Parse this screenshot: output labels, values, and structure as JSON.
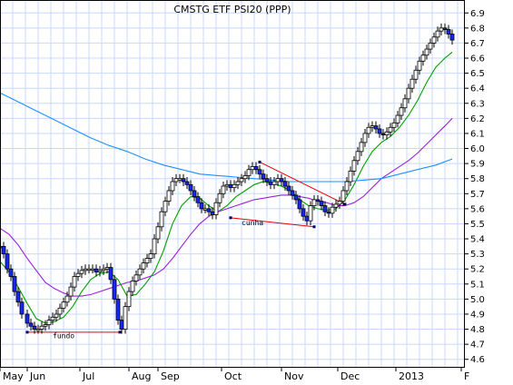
{
  "chart_data": {
    "type": "candlestick",
    "title": "CMSTG ETF PSI20 (PPP)",
    "xlabel": "",
    "ylabel": "",
    "ylim": [
      4.55,
      6.98
    ],
    "yticks": [
      4.6,
      4.7,
      4.8,
      4.9,
      5.0,
      5.1,
      5.2,
      5.3,
      5.4,
      5.5,
      5.6,
      5.7,
      5.8,
      5.9,
      6.0,
      6.1,
      6.2,
      6.3,
      6.4,
      6.5,
      6.6,
      6.7,
      6.8,
      6.9
    ],
    "xticks": [
      {
        "label": "May",
        "day": 0
      },
      {
        "label": "Jun",
        "day": 30
      },
      {
        "label": "Jul",
        "day": 88
      },
      {
        "label": "Aug",
        "day": 142
      },
      {
        "label": "Sep",
        "day": 174
      },
      {
        "label": "Oct",
        "day": 244
      },
      {
        "label": "Nov",
        "day": 310
      },
      {
        "label": "Dec",
        "day": 372
      },
      {
        "label": "2013",
        "day": 436
      },
      {
        "label": "F",
        "day": 508
      }
    ],
    "x_range_days": [
      0,
      512
    ],
    "grid": true,
    "legend": "none",
    "price": {
      "x": [
        0,
        4,
        8,
        12,
        16,
        20,
        24,
        30,
        34,
        38,
        42,
        46,
        50,
        54,
        58,
        62,
        66,
        70,
        74,
        78,
        82,
        86,
        90,
        94,
        98,
        102,
        106,
        110,
        114,
        118,
        122,
        126,
        130,
        134,
        138,
        142,
        146,
        150,
        154,
        158,
        162,
        166,
        170,
        174,
        178,
        182,
        186,
        190,
        194,
        198,
        202,
        206,
        210,
        214,
        218,
        222,
        226,
        230,
        234,
        238,
        242,
        246,
        250,
        254,
        258,
        262,
        266,
        270,
        274,
        278,
        282,
        286,
        290,
        294,
        298,
        302,
        306,
        310,
        314,
        318,
        322,
        326,
        330,
        334,
        338,
        342,
        346,
        350,
        354,
        358,
        362,
        366,
        370,
        374,
        378,
        382,
        386,
        390,
        394,
        398,
        402,
        406,
        410,
        414,
        418,
        422,
        426,
        430,
        434,
        438,
        442,
        446,
        450,
        454,
        458,
        462,
        466,
        470,
        474,
        478,
        482,
        486,
        490,
        494,
        498
      ],
      "close": [
        5.35,
        5.3,
        5.2,
        5.15,
        5.05,
        4.98,
        4.9,
        4.84,
        4.82,
        4.8,
        4.8,
        4.82,
        4.83,
        4.86,
        4.88,
        4.9,
        4.94,
        4.98,
        5.02,
        5.08,
        5.15,
        5.17,
        5.19,
        5.2,
        5.2,
        5.2,
        5.18,
        5.19,
        5.2,
        5.21,
        5.13,
        5.0,
        4.86,
        4.8,
        4.95,
        5.05,
        5.12,
        5.16,
        5.2,
        5.24,
        5.27,
        5.3,
        5.4,
        5.48,
        5.58,
        5.65,
        5.72,
        5.78,
        5.8,
        5.8,
        5.78,
        5.76,
        5.72,
        5.68,
        5.64,
        5.6,
        5.6,
        5.58,
        5.56,
        5.64,
        5.7,
        5.75,
        5.76,
        5.74,
        5.76,
        5.78,
        5.8,
        5.82,
        5.86,
        5.88,
        5.86,
        5.83,
        5.8,
        5.78,
        5.76,
        5.78,
        5.8,
        5.78,
        5.75,
        5.72,
        5.69,
        5.66,
        5.6,
        5.55,
        5.52,
        5.62,
        5.66,
        5.65,
        5.62,
        5.58,
        5.57,
        5.61,
        5.63,
        5.65,
        5.72,
        5.78,
        5.85,
        5.92,
        5.98,
        6.04,
        6.1,
        6.14,
        6.15,
        6.13,
        6.1,
        6.09,
        6.11,
        6.14,
        6.17,
        6.22,
        6.27,
        6.33,
        6.4,
        6.46,
        6.52,
        6.58,
        6.62,
        6.66,
        6.7,
        6.74,
        6.78,
        6.8,
        6.79,
        6.76,
        6.72
      ]
    },
    "series": [
      {
        "name": "",
        "color": "#00a000",
        "x": [
          0,
          10,
          20,
          30,
          40,
          50,
          60,
          70,
          80,
          90,
          100,
          110,
          120,
          130,
          140,
          150,
          160,
          170,
          180,
          190,
          200,
          210,
          220,
          230,
          240,
          250,
          260,
          270,
          280,
          290,
          300,
          310,
          320,
          330,
          340,
          350,
          360,
          370,
          380,
          390,
          400,
          410,
          420,
          430,
          440,
          450,
          460,
          470,
          480,
          490,
          498
        ],
        "values": [
          5.25,
          5.18,
          5.08,
          4.97,
          4.87,
          4.84,
          4.85,
          4.88,
          4.95,
          5.05,
          5.13,
          5.17,
          5.18,
          5.13,
          5.02,
          5.03,
          5.1,
          5.18,
          5.32,
          5.5,
          5.62,
          5.68,
          5.67,
          5.62,
          5.58,
          5.62,
          5.68,
          5.72,
          5.76,
          5.78,
          5.77,
          5.75,
          5.72,
          5.66,
          5.62,
          5.6,
          5.59,
          5.6,
          5.66,
          5.76,
          5.88,
          5.98,
          6.04,
          6.08,
          6.14,
          6.22,
          6.32,
          6.44,
          6.54,
          6.6,
          6.64
        ]
      },
      {
        "name": "",
        "color": "#9e1fdc",
        "x": [
          0,
          10,
          20,
          30,
          40,
          50,
          60,
          70,
          80,
          90,
          100,
          110,
          120,
          130,
          140,
          150,
          160,
          170,
          180,
          190,
          200,
          210,
          220,
          230,
          240,
          250,
          260,
          270,
          280,
          290,
          300,
          310,
          320,
          330,
          340,
          350,
          360,
          370,
          380,
          390,
          400,
          410,
          420,
          430,
          440,
          450,
          460,
          470,
          480,
          490,
          498
        ],
        "values": [
          5.47,
          5.43,
          5.36,
          5.27,
          5.19,
          5.11,
          5.07,
          5.04,
          5.02,
          5.02,
          5.03,
          5.05,
          5.07,
          5.09,
          5.11,
          5.12,
          5.14,
          5.16,
          5.2,
          5.27,
          5.35,
          5.43,
          5.5,
          5.55,
          5.58,
          5.6,
          5.62,
          5.64,
          5.66,
          5.67,
          5.68,
          5.69,
          5.69,
          5.68,
          5.67,
          5.65,
          5.64,
          5.62,
          5.62,
          5.64,
          5.68,
          5.74,
          5.8,
          5.84,
          5.88,
          5.92,
          5.97,
          6.03,
          6.09,
          6.15,
          6.2
        ]
      },
      {
        "name": "",
        "color": "#1e90ff",
        "x": [
          0,
          20,
          40,
          60,
          80,
          100,
          120,
          140,
          160,
          180,
          200,
          220,
          240,
          260,
          280,
          300,
          320,
          340,
          360,
          380,
          400,
          420,
          440,
          460,
          480,
          498
        ],
        "values": [
          6.37,
          6.31,
          6.25,
          6.19,
          6.13,
          6.07,
          6.02,
          5.98,
          5.93,
          5.89,
          5.86,
          5.83,
          5.82,
          5.81,
          5.8,
          5.79,
          5.78,
          5.78,
          5.78,
          5.78,
          5.79,
          5.8,
          5.83,
          5.86,
          5.89,
          5.93
        ]
      }
    ],
    "annotations": [
      {
        "text": "fundo",
        "x_day": 58,
        "y": 4.74
      },
      {
        "text": "cunha",
        "x_day": 266,
        "y": 5.49
      }
    ],
    "trendlines": [
      {
        "color": "#e60000",
        "from": [
          30,
          4.78
        ],
        "to": [
          132,
          4.78
        ]
      },
      {
        "color": "#e60000",
        "from": [
          254,
          5.54
        ],
        "to": [
          346,
          5.48
        ]
      },
      {
        "color": "#e60000",
        "from": [
          286,
          5.91
        ],
        "to": [
          380,
          5.63
        ]
      }
    ]
  }
}
